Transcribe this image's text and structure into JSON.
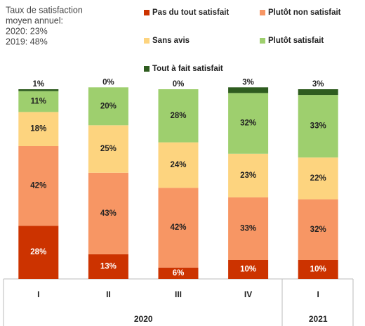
{
  "chart_data": {
    "type": "stacked_bar",
    "annotation": [
      "Taux de satisfaction",
      "moyen annuel:",
      "2020: 23%",
      "2019: 48%"
    ],
    "categories": [
      "I",
      "II",
      "III",
      "IV",
      "I"
    ],
    "groups": [
      {
        "label": "2020",
        "span": [
          0,
          3
        ]
      },
      {
        "label": "2021",
        "span": [
          4,
          4
        ]
      }
    ],
    "ylim": [
      0,
      100
    ],
    "series": [
      {
        "name": "Pas du tout satisfait",
        "color": "#cc3300",
        "values": [
          28,
          13,
          6,
          10,
          10
        ],
        "value_labels": [
          "28%",
          "13%",
          "6%",
          "10%",
          "10%"
        ]
      },
      {
        "name": "Plutôt non satisfait",
        "color": "#f79664",
        "values": [
          42,
          43,
          42,
          33,
          32
        ],
        "value_labels": [
          "42%",
          "43%",
          "42%",
          "33%",
          "32%"
        ]
      },
      {
        "name": "Sans avis",
        "color": "#fdd47f",
        "values": [
          18,
          25,
          24,
          23,
          22
        ],
        "value_labels": [
          "18%",
          "25%",
          "24%",
          "23%",
          "22%"
        ]
      },
      {
        "name": "Plutôt satisfait",
        "color": "#9ecf6e",
        "values": [
          11,
          20,
          28,
          32,
          33
        ],
        "value_labels": [
          "11%",
          "20%",
          "28%",
          "32%",
          "33%"
        ]
      },
      {
        "name": "Tout à fait satisfait",
        "color": "#2e5c1f",
        "values": [
          1,
          0,
          0,
          3,
          3
        ],
        "value_labels": [
          "1%",
          "0%",
          "0%",
          "3%",
          "3%"
        ]
      }
    ]
  }
}
